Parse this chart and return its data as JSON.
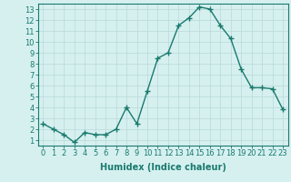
{
  "x": [
    0,
    1,
    2,
    3,
    4,
    5,
    6,
    7,
    8,
    9,
    10,
    11,
    12,
    13,
    14,
    15,
    16,
    17,
    18,
    19,
    20,
    21,
    22,
    23
  ],
  "y": [
    2.5,
    2.0,
    1.5,
    0.8,
    1.7,
    1.5,
    1.5,
    2.0,
    4.0,
    2.5,
    5.5,
    8.5,
    9.0,
    11.5,
    12.2,
    13.2,
    13.0,
    11.5,
    10.3,
    7.5,
    5.8,
    5.8,
    5.7,
    3.8
  ],
  "line_color": "#1a7a6e",
  "marker": "+",
  "marker_size": 4,
  "bg_color": "#d6f0f0",
  "grid_color": "#b8d8d8",
  "xlabel": "Humidex (Indice chaleur)",
  "xlim": [
    -0.5,
    23.5
  ],
  "ylim": [
    0.5,
    13.5
  ],
  "yticks": [
    1,
    2,
    3,
    4,
    5,
    6,
    7,
    8,
    9,
    10,
    11,
    12,
    13
  ],
  "xticks": [
    0,
    1,
    2,
    3,
    4,
    5,
    6,
    7,
    8,
    9,
    10,
    11,
    12,
    13,
    14,
    15,
    16,
    17,
    18,
    19,
    20,
    21,
    22,
    23
  ],
  "xlabel_fontsize": 7,
  "tick_fontsize": 6,
  "line_width": 1.0
}
